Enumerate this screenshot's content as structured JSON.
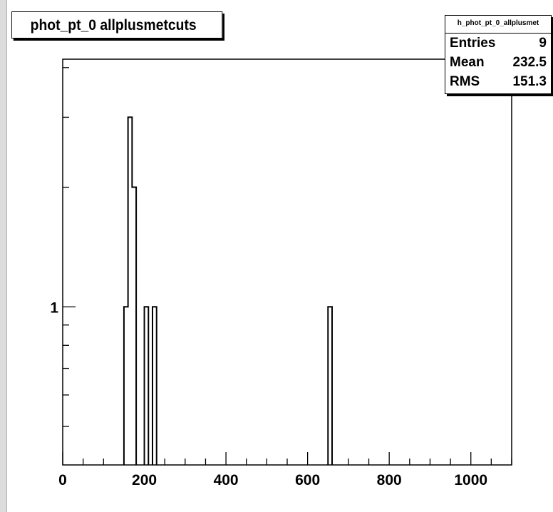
{
  "title": "phot_pt_0 allplusmetcuts",
  "stats": {
    "name": "h_phot_pt_0_allplusmet",
    "rows": [
      {
        "label": "Entries",
        "value": "9"
      },
      {
        "label": "Mean",
        "value": "232.5"
      },
      {
        "label": "RMS",
        "value": "151.3"
      }
    ]
  },
  "chart_data": {
    "type": "bar",
    "title": "phot_pt_0 allplusmetcuts",
    "xlabel": "",
    "ylabel": "",
    "xlim": [
      0,
      1100
    ],
    "ylim": [
      0.4,
      4.2
    ],
    "ylog": true,
    "grid": false,
    "x_ticks": [
      0,
      200,
      400,
      600,
      800,
      1000
    ],
    "y_tick_labels": [
      {
        "value": 1,
        "label": "1"
      }
    ],
    "bin_width": 10,
    "bins": [
      {
        "x": 150,
        "y": 1
      },
      {
        "x": 160,
        "y": 3
      },
      {
        "x": 170,
        "y": 2
      },
      {
        "x": 200,
        "y": 1
      },
      {
        "x": 220,
        "y": 1
      },
      {
        "x": 650,
        "y": 1
      }
    ],
    "line_color": "#000000"
  }
}
